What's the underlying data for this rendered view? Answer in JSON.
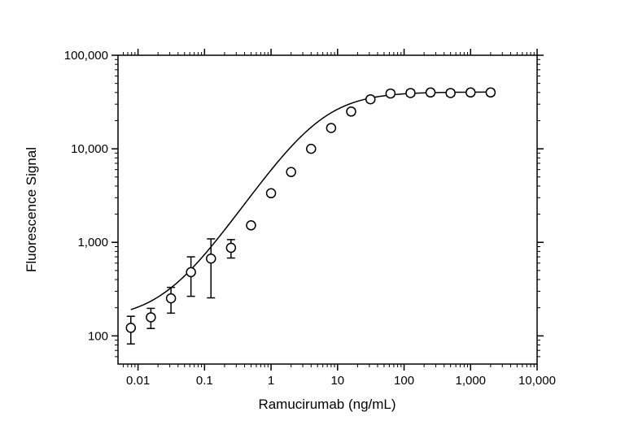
{
  "chart_data": {
    "type": "scatter",
    "title": "",
    "xlabel": "Ramucirumab (ng/mL)",
    "ylabel": "Fluorescence Signal",
    "xscale": "log",
    "yscale": "log",
    "xlim": [
      0.005,
      10000
    ],
    "ylim": [
      50,
      100000
    ],
    "grid": false,
    "legend": "none",
    "x_ticks": [
      {
        "value": 0.01,
        "label": "0.01"
      },
      {
        "value": 0.1,
        "label": "0.1"
      },
      {
        "value": 1,
        "label": "1"
      },
      {
        "value": 10,
        "label": "10"
      },
      {
        "value": 100,
        "label": "100"
      },
      {
        "value": 1000,
        "label": "1,000"
      },
      {
        "value": 10000,
        "label": "10,000"
      }
    ],
    "y_ticks": [
      {
        "value": 100,
        "label": "100"
      },
      {
        "value": 1000,
        "label": "1,000"
      },
      {
        "value": 10000,
        "label": "10,000"
      },
      {
        "value": 100000,
        "label": "100,000"
      }
    ],
    "series": [
      {
        "marker": "open-circle",
        "color": "#000000",
        "points": [
          {
            "x": 0.0078,
            "y": 122,
            "err_low": 82,
            "err_high": 162
          },
          {
            "x": 0.0156,
            "y": 158,
            "err_low": 120,
            "err_high": 197
          },
          {
            "x": 0.0313,
            "y": 252,
            "err_low": 175,
            "err_high": 330
          },
          {
            "x": 0.0625,
            "y": 480,
            "err_low": 265,
            "err_high": 700
          },
          {
            "x": 0.125,
            "y": 670,
            "err_low": 255,
            "err_high": 1090
          },
          {
            "x": 0.25,
            "y": 875,
            "err_low": 680,
            "err_high": 1070
          },
          {
            "x": 0.5,
            "y": 1520,
            "err_low": 1430,
            "err_high": 1610
          },
          {
            "x": 1,
            "y": 3350,
            "err_low": 3200,
            "err_high": 3500
          },
          {
            "x": 2,
            "y": 5650,
            "err_low": 5400,
            "err_high": 5900
          },
          {
            "x": 4,
            "y": 10000,
            "err_low": 9400,
            "err_high": 10600
          },
          {
            "x": 8,
            "y": 16700,
            "err_low": 15700,
            "err_high": 17700
          },
          {
            "x": 16,
            "y": 25000,
            "err_low": 23300,
            "err_high": 26800
          },
          {
            "x": 31.25,
            "y": 33800,
            "err_low": 31500,
            "err_high": 36200
          },
          {
            "x": 62.5,
            "y": 39000,
            "err_low": 36200,
            "err_high": 42000
          },
          {
            "x": 125,
            "y": 39500,
            "err_low": 36700,
            "err_high": 42500
          },
          {
            "x": 250,
            "y": 40000,
            "err_low": 37200,
            "err_high": 43000
          },
          {
            "x": 500,
            "y": 39500,
            "err_low": 36700,
            "err_high": 42500
          },
          {
            "x": 1000,
            "y": 40000,
            "err_low": 37200,
            "err_high": 43000
          },
          {
            "x": 2000,
            "y": 40000,
            "err_low": 37200,
            "err_high": 43000
          }
        ]
      }
    ],
    "fit_curve": {
      "model": "4PL",
      "bottom": 150,
      "top": 40500,
      "ec50": 5.5,
      "hill": 1.05,
      "x_range": [
        0.0078,
        2000
      ],
      "color": "#000000"
    }
  }
}
